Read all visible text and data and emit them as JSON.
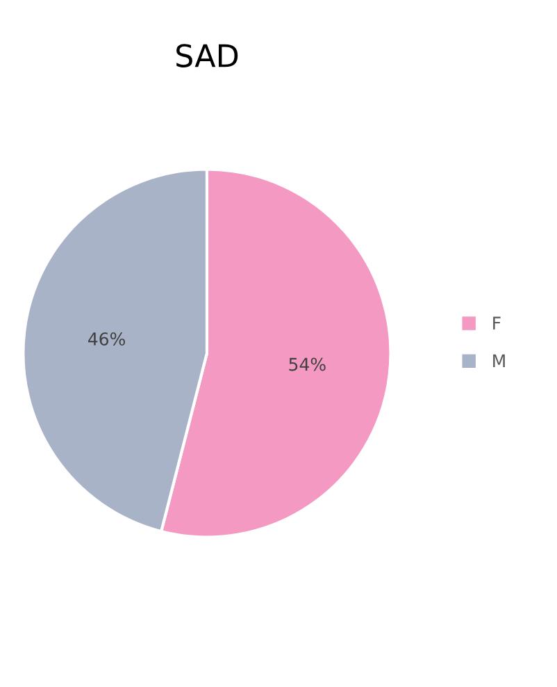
{
  "chart_data": {
    "type": "pie",
    "title": "SAD",
    "categories": [
      "F",
      "M"
    ],
    "values": [
      54,
      46
    ],
    "colors": [
      "#f49ac2",
      "#a9b3c7"
    ],
    "value_labels": [
      "54%",
      "46%"
    ],
    "legend": "right"
  }
}
